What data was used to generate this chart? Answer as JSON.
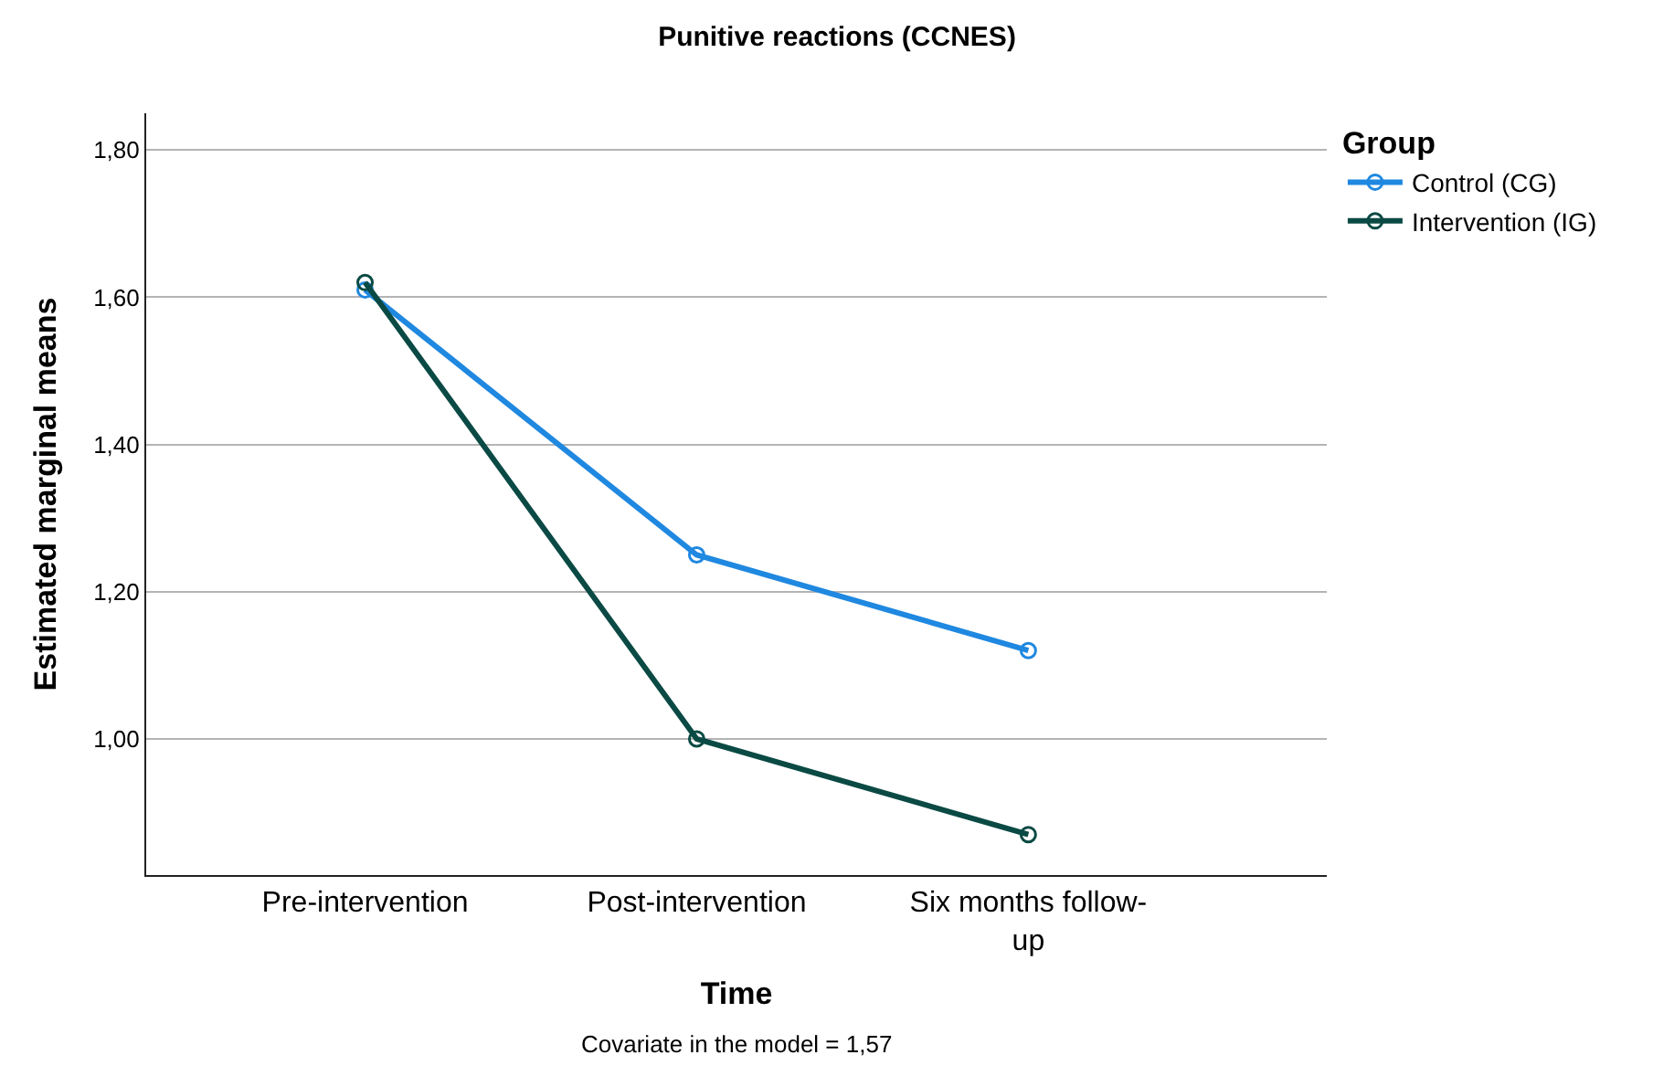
{
  "chart_data": {
    "type": "line",
    "title": "Punitive reactions (CCNES)",
    "xlabel": "Time",
    "ylabel": "Estimated marginal means",
    "legend_title": "Group",
    "categories": [
      "Pre-intervention",
      "Post-intervention",
      "Six months follow-up"
    ],
    "series": [
      {
        "name": "Control (CG)",
        "color": "#1f88e0",
        "values": [
          1.61,
          1.25,
          1.12
        ]
      },
      {
        "name": "Intervention (IG)",
        "color": "#0b4a44",
        "values": [
          1.62,
          1.0,
          0.87
        ]
      }
    ],
    "ylim": [
      0.815,
      1.85
    ],
    "yticks": [
      {
        "value": 1.0,
        "label": "1,00"
      },
      {
        "value": 1.2,
        "label": "1,20"
      },
      {
        "value": 1.4,
        "label": "1,40"
      },
      {
        "value": 1.6,
        "label": "1,60"
      },
      {
        "value": 1.8,
        "label": "1,80"
      }
    ],
    "grid": "y",
    "legend": "top right",
    "marker": "circle",
    "line_style": "solid",
    "annotations": [
      "Covariate in the model = 1,57"
    ]
  }
}
